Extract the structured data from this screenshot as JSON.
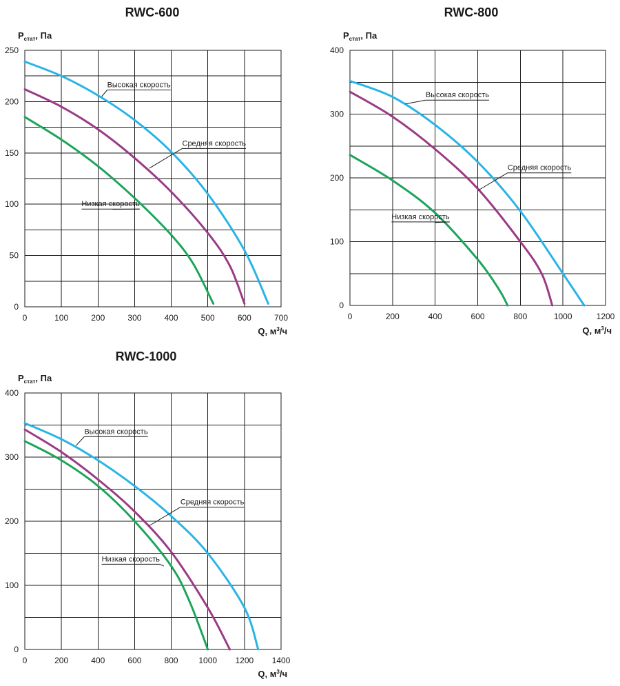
{
  "colors": {
    "high": "#29b4e6",
    "medium": "#9b3b86",
    "low": "#1ca55a",
    "grid": "#1a1a1a"
  },
  "chart_data": [
    {
      "type": "line",
      "title": "RWC-600",
      "ylabel_main": "P",
      "ylabel_sub": "стат",
      "ylabel_unit": ", Па",
      "xlabel_main": "Q, м",
      "xlabel_sup": "3",
      "xlabel_unit": "/ч",
      "xlim": [
        0,
        700
      ],
      "ylim": [
        0,
        250
      ],
      "xticks": [
        0,
        100,
        200,
        300,
        400,
        500,
        600,
        700
      ],
      "yticks": [
        0,
        50,
        100,
        150,
        200,
        250
      ],
      "grid_y_step": 25,
      "grid": true,
      "series": [
        {
          "name": "Высокая скорость",
          "color_key": "high",
          "points": [
            [
              0,
              239
            ],
            [
              100,
              225
            ],
            [
              200,
              206
            ],
            [
              300,
              182
            ],
            [
              400,
              151
            ],
            [
              500,
              110
            ],
            [
              600,
              55
            ],
            [
              665,
              3
            ]
          ]
        },
        {
          "name": "Средняя скорость",
          "color_key": "medium",
          "points": [
            [
              0,
              212
            ],
            [
              100,
              195
            ],
            [
              200,
              173
            ],
            [
              300,
              145
            ],
            [
              400,
              112
            ],
            [
              500,
              72
            ],
            [
              560,
              40
            ],
            [
              600,
              3
            ]
          ]
        },
        {
          "name": "Низкая скорость",
          "color_key": "low",
          "points": [
            [
              0,
              185
            ],
            [
              100,
              163
            ],
            [
              200,
              137
            ],
            [
              300,
              106
            ],
            [
              400,
              70
            ],
            [
              460,
              42
            ],
            [
              515,
              3
            ]
          ]
        }
      ],
      "annotations": [
        {
          "text": "Высокая скорость",
          "series": 0,
          "at": [
            210,
            205
          ],
          "label_at": [
            225,
            212
          ]
        },
        {
          "text": "Средняя скорость",
          "series": 1,
          "at": [
            340,
            135
          ],
          "label_at": [
            430,
            155
          ]
        },
        {
          "text": "Низкая скорость",
          "series": 2,
          "at": [
            240,
            95
          ],
          "label_at": [
            155,
            96
          ]
        }
      ]
    },
    {
      "type": "line",
      "title": "RWC-800",
      "ylabel_main": "P",
      "ylabel_sub": "стат",
      "ylabel_unit": ", Па",
      "xlabel_main": "Q, м",
      "xlabel_sup": "3",
      "xlabel_unit": "/ч",
      "xlim": [
        0,
        1200
      ],
      "ylim": [
        0,
        400
      ],
      "xticks": [
        0,
        200,
        400,
        600,
        800,
        1000,
        1200
      ],
      "yticks": [
        0,
        100,
        200,
        300,
        400
      ],
      "grid_y_step": 50,
      "grid": true,
      "series": [
        {
          "name": "Высокая скорость",
          "color_key": "high",
          "points": [
            [
              0,
              352
            ],
            [
              200,
              327
            ],
            [
              400,
              283
            ],
            [
              600,
              225
            ],
            [
              800,
              148
            ],
            [
              1000,
              50
            ],
            [
              1100,
              0
            ]
          ]
        },
        {
          "name": "Средняя скорость",
          "color_key": "medium",
          "points": [
            [
              0,
              335
            ],
            [
              200,
              296
            ],
            [
              400,
              245
            ],
            [
              600,
              183
            ],
            [
              800,
              100
            ],
            [
              900,
              50
            ],
            [
              950,
              0
            ]
          ]
        },
        {
          "name": "Низкая скорость",
          "color_key": "low",
          "points": [
            [
              0,
              236
            ],
            [
              200,
              196
            ],
            [
              400,
              145
            ],
            [
              600,
              72
            ],
            [
              700,
              25
            ],
            [
              740,
              0
            ]
          ]
        }
      ],
      "annotations": [
        {
          "text": "Высокая скорость",
          "series": 0,
          "at": [
            260,
            316
          ],
          "label_at": [
            355,
            323
          ]
        },
        {
          "text": "Средняя скорость",
          "series": 1,
          "at": [
            600,
            180
          ],
          "label_at": [
            740,
            209
          ]
        },
        {
          "text": "Низкая скорость",
          "series": 2,
          "at": [
            400,
            130
          ],
          "label_at": [
            195,
            132
          ]
        }
      ]
    },
    {
      "type": "line",
      "title": "RWC-1000",
      "ylabel_main": "P",
      "ylabel_sub": "стат",
      "ylabel_unit": ", Па",
      "xlabel_main": "Q, м",
      "xlabel_sup": "3",
      "xlabel_unit": "/ч",
      "xlim": [
        0,
        1400
      ],
      "ylim": [
        0,
        400
      ],
      "xticks": [
        0,
        200,
        400,
        600,
        800,
        1000,
        1200,
        1400
      ],
      "yticks": [
        0,
        100,
        200,
        300,
        400
      ],
      "grid_y_step": 50,
      "grid": true,
      "series": [
        {
          "name": "Высокая скорость",
          "color_key": "high",
          "points": [
            [
              0,
              353
            ],
            [
              200,
              328
            ],
            [
              400,
              295
            ],
            [
              600,
              255
            ],
            [
              800,
              208
            ],
            [
              1000,
              150
            ],
            [
              1200,
              65
            ],
            [
              1275,
              0
            ]
          ]
        },
        {
          "name": "Средняя скорость",
          "color_key": "medium",
          "points": [
            [
              0,
              343
            ],
            [
              200,
              308
            ],
            [
              400,
              265
            ],
            [
              600,
              215
            ],
            [
              800,
              152
            ],
            [
              1000,
              65
            ],
            [
              1120,
              0
            ]
          ]
        },
        {
          "name": "Низкая скорость",
          "color_key": "low",
          "points": [
            [
              0,
              325
            ],
            [
              200,
              295
            ],
            [
              400,
              255
            ],
            [
              600,
              200
            ],
            [
              800,
              130
            ],
            [
              900,
              75
            ],
            [
              1000,
              0
            ]
          ]
        }
      ],
      "annotations": [
        {
          "text": "Высокая скорость",
          "series": 0,
          "at": [
            280,
            318
          ],
          "label_at": [
            325,
            333
          ]
        },
        {
          "text": "Средняя скорость",
          "series": 1,
          "at": [
            680,
            193
          ],
          "label_at": [
            850,
            223
          ]
        },
        {
          "text": "Низкая скорость",
          "series": 2,
          "at": [
            760,
            130
          ],
          "label_at": [
            420,
            134
          ]
        }
      ]
    }
  ]
}
